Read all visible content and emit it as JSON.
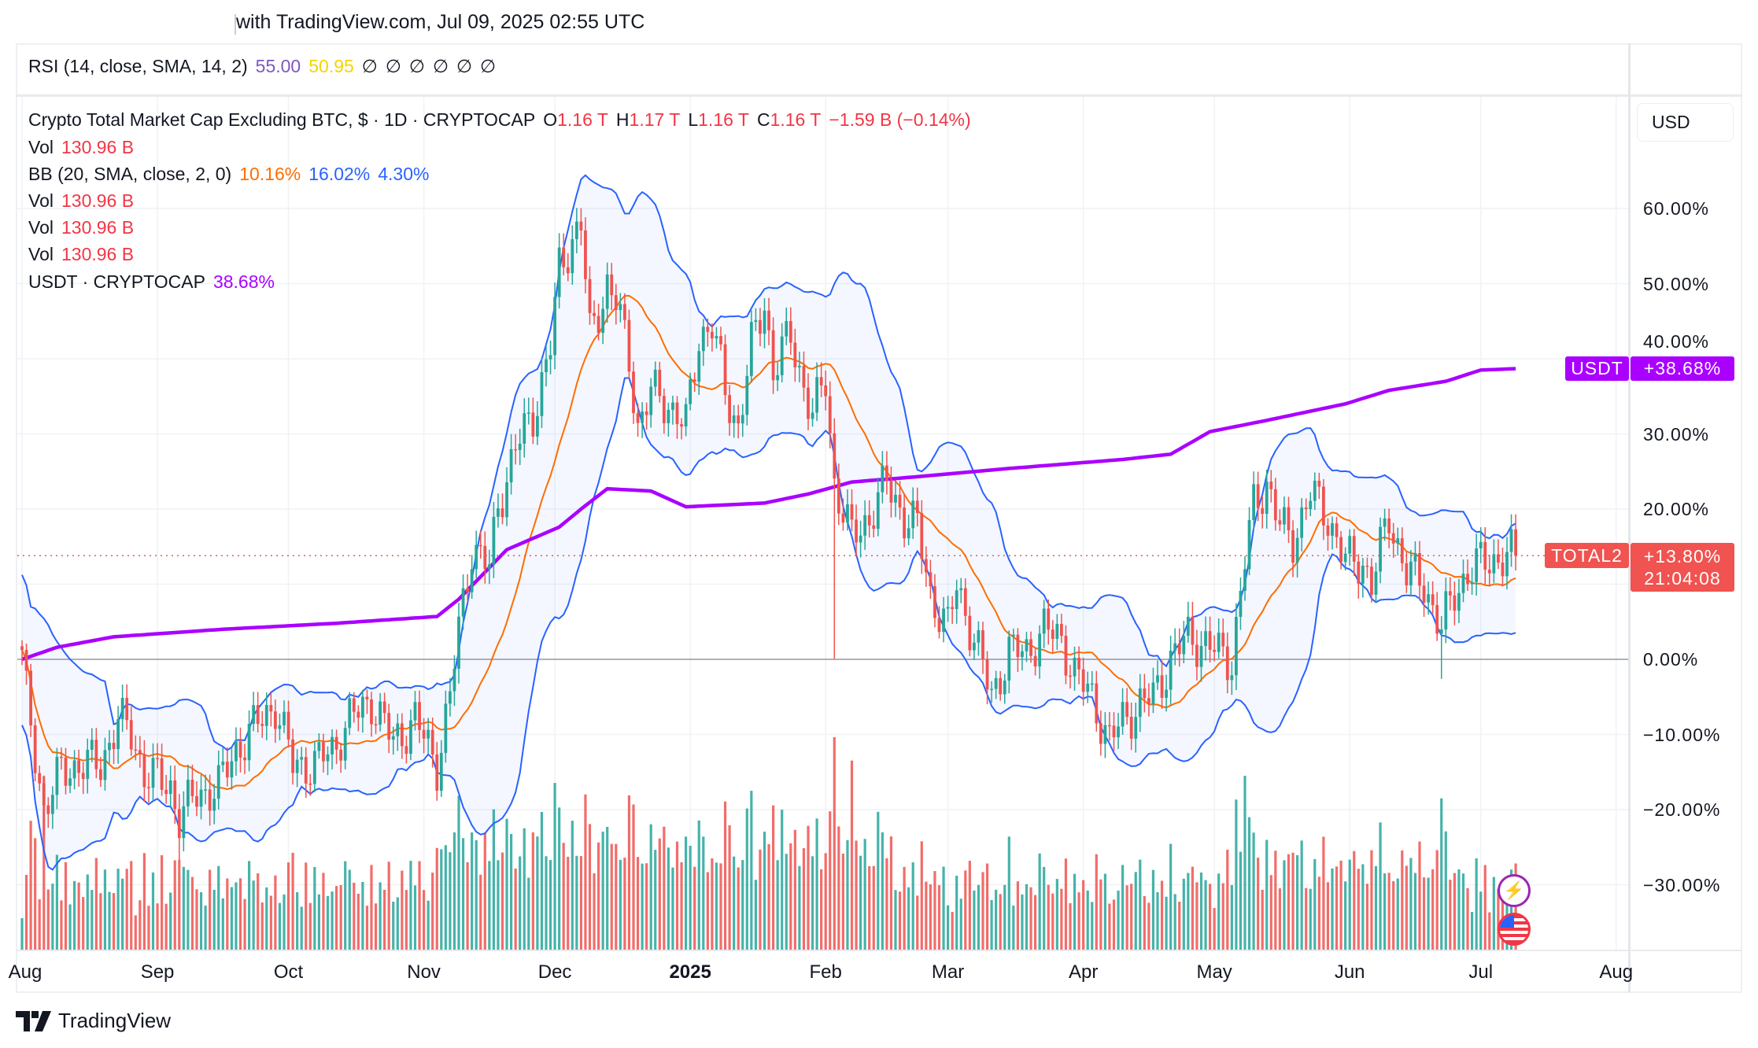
{
  "header": {
    "caption": "with TradingView.com, Jul 09, 2025 02:55 UTC"
  },
  "rsi_legend": {
    "label": "RSI (14, close, SMA, 14, 2)",
    "value1": "55.00",
    "value2": "50.95",
    "empty_values": [
      "∅",
      "∅",
      "∅",
      "∅",
      "∅",
      "∅"
    ]
  },
  "main_legend": {
    "title": "Crypto Total Market Cap Excluding BTC, $ · 1D · CRYPTOCAP",
    "o_label": "O",
    "o_value": "1.16 T",
    "h_label": "H",
    "h_value": "1.17 T",
    "l_label": "L",
    "l_value": "1.16 T",
    "c_label": "C",
    "c_value": "1.16 T",
    "change": "−1.59 B (−0.14%)",
    "vol_rows": [
      {
        "label": "Vol",
        "value": "130.96 B"
      },
      {
        "label": "Vol",
        "value": "130.96 B"
      },
      {
        "label": "Vol",
        "value": "130.96 B"
      },
      {
        "label": "Vol",
        "value": "130.96 B"
      }
    ],
    "bb": {
      "label": "BB (20, SMA, close, 2, 0)",
      "basis": "10.16%",
      "upper": "16.02%",
      "lower": "4.30%"
    },
    "usdt": {
      "label": "USDT · CRYPTOCAP",
      "value": "38.68%"
    }
  },
  "price_axis": {
    "currency": "USD",
    "labels": [
      "60.00%",
      "50.00%",
      "40.00%",
      "30.00%",
      "20.00%",
      "0.00%",
      "−10.00%",
      "−20.00%",
      "−30.00%"
    ]
  },
  "tags": {
    "usdt_name": "USDT",
    "usdt_value": "+38.68%",
    "total2_name": "TOTAL2",
    "total2_value": "+13.80%",
    "countdown": "21:04:08"
  },
  "time_axis": [
    "Aug",
    "Sep",
    "Oct",
    "Nov",
    "Dec",
    "2025",
    "Feb",
    "Mar",
    "Apr",
    "May",
    "Jun",
    "Jul",
    "Aug"
  ],
  "branding": {
    "name": "TradingView"
  },
  "colors": {
    "up": "#26a69a",
    "down": "#ef5350",
    "bb_band": "#2962ff",
    "bb_basis": "#ff6d00",
    "usdt": "#aa00ff",
    "rsi": "#7e57c2",
    "rsi_ma": "#fdd835"
  },
  "chart_data": {
    "type": "candlestick",
    "title": "Crypto Total Market Cap Excluding BTC (TOTAL2), % change",
    "x_start": "2024-08-01",
    "x_end": "2025-07-09",
    "ylim": [
      -37,
      68
    ],
    "y_ticks": [
      -30,
      -20,
      -10,
      0,
      10,
      20,
      30,
      40,
      50,
      60
    ],
    "total2_close_keypoints": [
      [
        0,
        0
      ],
      [
        1,
        -5
      ],
      [
        5,
        -20
      ],
      [
        9,
        -15
      ],
      [
        13,
        -14
      ],
      [
        18,
        -14
      ],
      [
        22,
        -8
      ],
      [
        25,
        -10
      ],
      [
        28,
        -15
      ],
      [
        34,
        -17
      ],
      [
        36,
        -21
      ],
      [
        40,
        -18
      ],
      [
        45,
        -17
      ],
      [
        49,
        -12
      ],
      [
        54,
        -8.5
      ],
      [
        58,
        -6
      ],
      [
        62,
        -14
      ],
      [
        67,
        -14
      ],
      [
        71,
        -12
      ],
      [
        75,
        -8
      ],
      [
        80,
        -5.5
      ],
      [
        85,
        -11
      ],
      [
        90,
        -8
      ],
      [
        95,
        -14
      ],
      [
        98,
        -5
      ],
      [
        100,
        4
      ],
      [
        103,
        15
      ],
      [
        107,
        12
      ],
      [
        109,
        20.6
      ],
      [
        113,
        28
      ],
      [
        117,
        32.5
      ],
      [
        121,
        41.5
      ],
      [
        123,
        52
      ],
      [
        126,
        56
      ],
      [
        128,
        58
      ],
      [
        130,
        43
      ],
      [
        134,
        50
      ],
      [
        136,
        47.5
      ],
      [
        139,
        40
      ],
      [
        141,
        31
      ],
      [
        144,
        35.5
      ],
      [
        148,
        34
      ],
      [
        152,
        31
      ],
      [
        155,
        43
      ],
      [
        158,
        44.5
      ],
      [
        161,
        35.5
      ],
      [
        164,
        31
      ],
      [
        167,
        41.5
      ],
      [
        170,
        47.5
      ],
      [
        172,
        38.5
      ],
      [
        176,
        43
      ],
      [
        178,
        38.5
      ],
      [
        181,
        32.5
      ],
      [
        184,
        37
      ],
      [
        186,
        23.5
      ],
      [
        190,
        16
      ],
      [
        194,
        19
      ],
      [
        198,
        23.5
      ],
      [
        202,
        19
      ],
      [
        205,
        17.6
      ],
      [
        208,
        8.7
      ],
      [
        212,
        4
      ],
      [
        214,
        10
      ],
      [
        218,
        2.7
      ],
      [
        222,
        -4.8
      ],
      [
        226,
        1
      ],
      [
        230,
        1
      ],
      [
        234,
        4
      ],
      [
        238,
        2.7
      ],
      [
        241,
        -2
      ],
      [
        245,
        -5
      ],
      [
        249,
        -11
      ],
      [
        252,
        -8
      ],
      [
        256,
        -6
      ],
      [
        259,
        -5
      ],
      [
        263,
        0
      ],
      [
        267,
        3
      ],
      [
        271,
        2
      ],
      [
        275,
        0.5
      ],
      [
        277,
        0
      ],
      [
        280,
        13
      ],
      [
        282,
        20.6
      ],
      [
        285,
        23.5
      ],
      [
        288,
        17.6
      ],
      [
        291,
        16
      ],
      [
        295,
        22
      ],
      [
        299,
        19
      ],
      [
        303,
        13
      ],
      [
        307,
        13
      ],
      [
        309,
        10
      ],
      [
        313,
        19
      ],
      [
        317,
        11.6
      ],
      [
        321,
        10
      ],
      [
        325,
        4
      ],
      [
        328,
        8.7
      ],
      [
        331,
        11.6
      ],
      [
        335,
        13
      ],
      [
        339,
        13.6
      ],
      [
        342,
        13.8
      ]
    ],
    "usdt_keypoints": [
      [
        0,
        0
      ],
      [
        8,
        1.6
      ],
      [
        21,
        3
      ],
      [
        46,
        4
      ],
      [
        72,
        4.8
      ],
      [
        95,
        5.7
      ],
      [
        100,
        8
      ],
      [
        111,
        14.6
      ],
      [
        123,
        17.6
      ],
      [
        128,
        20
      ],
      [
        134,
        22.7
      ],
      [
        144,
        22.4
      ],
      [
        152,
        20.3
      ],
      [
        170,
        20.8
      ],
      [
        180,
        22
      ],
      [
        190,
        23.6
      ],
      [
        205,
        24.3
      ],
      [
        226,
        25.4
      ],
      [
        252,
        26.6
      ],
      [
        263,
        27.3
      ],
      [
        272,
        30.3
      ],
      [
        285,
        31.8
      ],
      [
        303,
        34
      ],
      [
        313,
        35.8
      ],
      [
        326,
        37
      ],
      [
        334,
        38.5
      ],
      [
        342,
        38.68
      ]
    ],
    "last_value": 13.8,
    "bollinger": {
      "period": 20,
      "mult": 2
    }
  }
}
